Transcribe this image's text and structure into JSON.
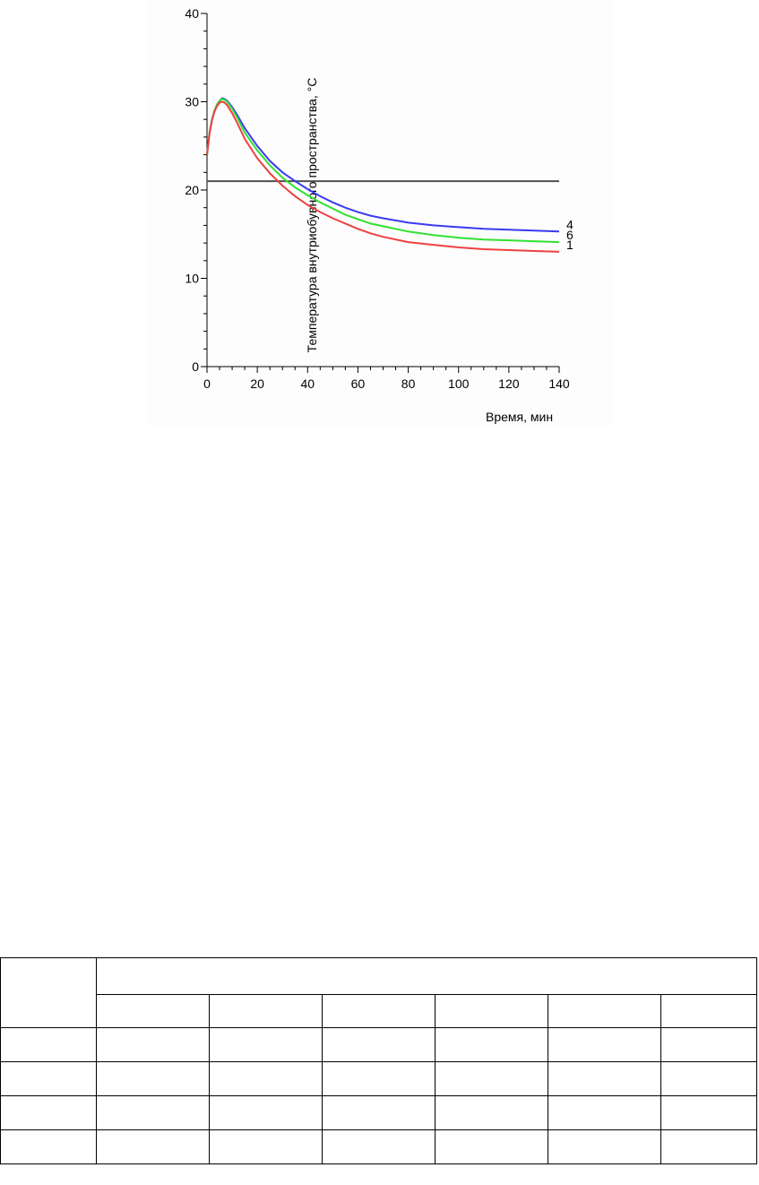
{
  "chart_data": {
    "type": "line",
    "title": "",
    "xlabel": "Время, мин",
    "ylabel": "Температура внутриобувного пространства, °С",
    "xlim": [
      0,
      140
    ],
    "ylim": [
      0,
      40
    ],
    "xticks": [
      0,
      20,
      40,
      60,
      80,
      100,
      120,
      140
    ],
    "yticks": [
      0,
      10,
      20,
      30,
      40
    ],
    "grid": false,
    "legend": "none",
    "reference_line": {
      "y": 21,
      "color": "#505050"
    },
    "series": [
      {
        "name": "4",
        "color": "#3a3aef",
        "x": [
          0,
          1,
          2,
          3,
          4,
          5,
          6,
          7,
          8,
          10,
          12,
          15,
          20,
          25,
          30,
          35,
          40,
          45,
          50,
          55,
          60,
          65,
          70,
          80,
          90,
          100,
          110,
          120,
          130,
          140
        ],
        "y": [
          24,
          26.5,
          28,
          29,
          29.7,
          30.1,
          30.4,
          30.3,
          30.1,
          29.4,
          28.5,
          27,
          25,
          23.3,
          22,
          21,
          20.1,
          19.3,
          18.6,
          18,
          17.5,
          17.1,
          16.8,
          16.3,
          16,
          15.8,
          15.6,
          15.5,
          15.4,
          15.3
        ]
      },
      {
        "name": "6",
        "color": "#33e033",
        "x": [
          0,
          1,
          2,
          3,
          4,
          5,
          6,
          7,
          8,
          10,
          12,
          15,
          20,
          25,
          30,
          35,
          40,
          45,
          50,
          55,
          60,
          65,
          70,
          80,
          90,
          100,
          110,
          120,
          130,
          140
        ],
        "y": [
          24,
          26.5,
          28,
          29,
          29.7,
          30.1,
          30.3,
          30.2,
          30,
          29.2,
          28.2,
          26.5,
          24.5,
          22.8,
          21.4,
          20.3,
          19.4,
          18.6,
          17.9,
          17.2,
          16.7,
          16.2,
          15.9,
          15.3,
          14.9,
          14.6,
          14.4,
          14.3,
          14.2,
          14.1
        ]
      },
      {
        "name": "1",
        "color": "#ef4040",
        "x": [
          0,
          1,
          2,
          3,
          4,
          5,
          6,
          7,
          8,
          10,
          12,
          15,
          20,
          25,
          30,
          35,
          40,
          45,
          50,
          55,
          60,
          65,
          70,
          80,
          90,
          100,
          110,
          120,
          130,
          140
        ],
        "y": [
          24,
          26.4,
          27.9,
          28.9,
          29.5,
          29.9,
          30,
          29.9,
          29.6,
          28.7,
          27.6,
          25.8,
          23.6,
          21.9,
          20.5,
          19.3,
          18.3,
          17.5,
          16.8,
          16.2,
          15.6,
          15.1,
          14.7,
          14.1,
          13.8,
          13.5,
          13.3,
          13.2,
          13.1,
          13.0
        ]
      }
    ]
  },
  "table": {
    "header_rows": 2,
    "body_rows": 4,
    "columns": 7
  }
}
